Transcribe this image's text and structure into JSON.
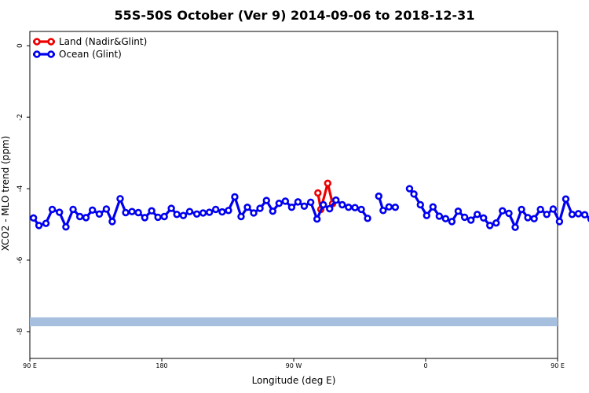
{
  "chart_data": {
    "type": "line",
    "title": "55S-50S October (Ver 9)   2014-09-06 to 2018-12-31",
    "xlabel": "Longitude (deg E)",
    "ylabel": "XCO2 - MLO trend (ppm)",
    "xlim": [
      90,
      450
    ],
    "ylim": [
      -8.75,
      0.4
    ],
    "x_ticks": [
      {
        "value": 90,
        "label": "90 E"
      },
      {
        "value": 180,
        "label": "180"
      },
      {
        "value": 270,
        "label": "90 W"
      },
      {
        "value": 360,
        "label": "0"
      },
      {
        "value": 450,
        "label": "90 E"
      },
      {
        "value": 540,
        "label": "180"
      }
    ],
    "y_ticks": [
      {
        "value": 0,
        "label": "0"
      },
      {
        "value": -2,
        "label": "-2"
      },
      {
        "value": -4,
        "label": "-4"
      },
      {
        "value": -6,
        "label": "-6"
      },
      {
        "value": -8,
        "label": "-8"
      }
    ],
    "legend_position": "top-left",
    "series": [
      {
        "name": "Land (Nadir&Glint)",
        "color": "#ee0000",
        "segments": [
          [
            [
              286.5,
              -4.12
            ],
            [
              288.5,
              -4.58
            ],
            [
              293.2,
              -3.85
            ],
            [
              296.5,
              -4.42
            ]
          ]
        ]
      },
      {
        "name": "Ocean (Glint)",
        "color": "#0000ee",
        "segments": [
          [
            [
              92.5,
              -4.82
            ],
            [
              96.2,
              -5.03
            ],
            [
              101.0,
              -4.97
            ],
            [
              105.3,
              -4.58
            ],
            [
              110.2,
              -4.66
            ],
            [
              114.6,
              -5.07
            ],
            [
              119.5,
              -4.58
            ],
            [
              124.1,
              -4.78
            ],
            [
              128.3,
              -4.81
            ],
            [
              132.7,
              -4.6
            ],
            [
              137.4,
              -4.71
            ],
            [
              142.2,
              -4.57
            ],
            [
              146.2,
              -4.92
            ],
            [
              151.6,
              -4.28
            ],
            [
              155.4,
              -4.67
            ],
            [
              159.7,
              -4.64
            ],
            [
              164.0,
              -4.67
            ],
            [
              168.4,
              -4.81
            ],
            [
              173.1,
              -4.62
            ],
            [
              177.4,
              -4.8
            ],
            [
              181.7,
              -4.78
            ],
            [
              186.5,
              -4.55
            ],
            [
              190.3,
              -4.72
            ],
            [
              194.7,
              -4.75
            ],
            [
              199.0,
              -4.64
            ],
            [
              203.9,
              -4.71
            ],
            [
              208.2,
              -4.68
            ],
            [
              212.5,
              -4.66
            ],
            [
              216.8,
              -4.58
            ],
            [
              221.2,
              -4.65
            ],
            [
              225.5,
              -4.61
            ],
            [
              229.8,
              -4.23
            ],
            [
              234.1,
              -4.78
            ],
            [
              238.4,
              -4.52
            ],
            [
              242.7,
              -4.68
            ],
            [
              247.0,
              -4.55
            ],
            [
              251.4,
              -4.33
            ],
            [
              255.7,
              -4.63
            ],
            [
              260.0,
              -4.41
            ],
            [
              264.3,
              -4.35
            ],
            [
              268.6,
              -4.52
            ],
            [
              272.9,
              -4.37
            ],
            [
              277.2,
              -4.49
            ],
            [
              281.6,
              -4.38
            ],
            [
              285.9,
              -4.85
            ],
            [
              290.2,
              -4.45
            ],
            [
              294.5,
              -4.56
            ],
            [
              298.8,
              -4.32
            ],
            [
              303.1,
              -4.45
            ],
            [
              307.4,
              -4.52
            ],
            [
              311.8,
              -4.53
            ],
            [
              316.1,
              -4.58
            ],
            [
              320.4,
              -4.83
            ]
          ],
          [
            [
              328.0,
              -4.21
            ],
            [
              331.0,
              -4.61
            ],
            [
              335.0,
              -4.51
            ],
            [
              339.3,
              -4.52
            ]
          ],
          [
            [
              349.0,
              -4.0
            ],
            [
              352.0,
              -4.15
            ],
            [
              356.4,
              -4.45
            ],
            [
              360.7,
              -4.75
            ],
            [
              365.0,
              -4.51
            ],
            [
              369.3,
              -4.77
            ],
            [
              373.6,
              -4.84
            ],
            [
              377.9,
              -4.92
            ],
            [
              382.2,
              -4.63
            ],
            [
              386.6,
              -4.8
            ],
            [
              390.9,
              -4.88
            ],
            [
              395.2,
              -4.72
            ],
            [
              399.5,
              -4.82
            ],
            [
              403.8,
              -5.03
            ],
            [
              408.1,
              -4.96
            ],
            [
              412.4,
              -4.62
            ],
            [
              416.8,
              -4.69
            ],
            [
              421.1,
              -5.08
            ],
            [
              425.4,
              -4.58
            ],
            [
              429.7,
              -4.81
            ],
            [
              434.0,
              -4.84
            ],
            [
              438.3,
              -4.58
            ],
            [
              442.6,
              -4.72
            ],
            [
              447.0,
              -4.57
            ],
            [
              451.3,
              -4.92
            ],
            [
              455.6,
              -4.29
            ],
            [
              459.9,
              -4.72
            ],
            [
              464.2,
              -4.7
            ],
            [
              468.5,
              -4.73
            ],
            [
              472.8,
              -4.85
            ]
          ]
        ]
      }
    ],
    "band": {
      "y_range": [
        -7.85,
        -7.6
      ],
      "color": "#a7bfdf"
    }
  }
}
